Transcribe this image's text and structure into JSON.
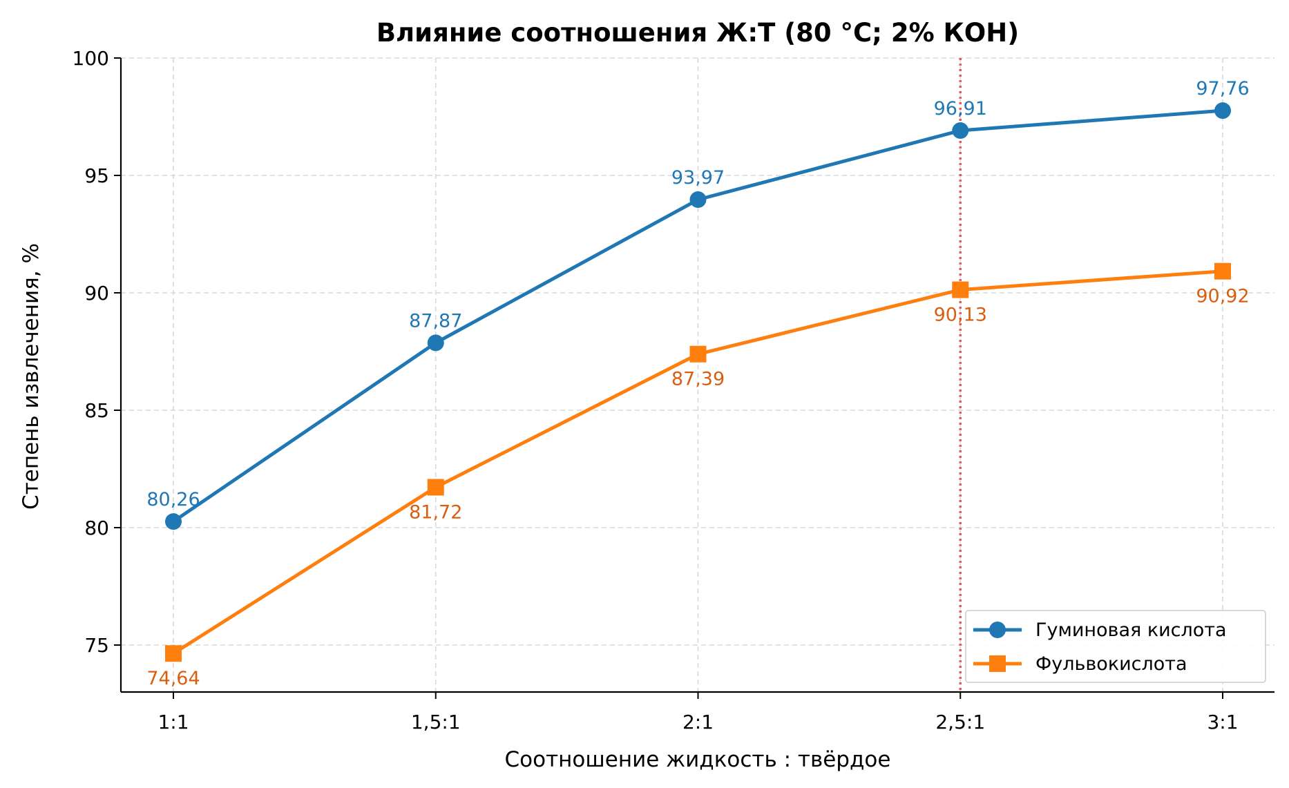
{
  "chart_data": {
    "type": "line",
    "title": "Влияние соотношения Ж:Т (80 °C; 2% КОН)",
    "xlabel": "Соотношение жидкость : твёрдое",
    "ylabel": "Степень извлечения, %",
    "categories": [
      "1:1",
      "1,5:1",
      "2:1",
      "2,5:1",
      "3:1"
    ],
    "ylim": [
      73,
      100
    ],
    "yticks": [
      75,
      80,
      85,
      90,
      95,
      100
    ],
    "grid": true,
    "legend_position": "bottom-right",
    "vline_category": "2,5:1",
    "vline_color": "#e8474b",
    "series": [
      {
        "name": "Гуминовая кислота",
        "values": [
          80.26,
          87.87,
          93.97,
          96.91,
          97.76
        ],
        "labels": [
          "80,26",
          "87,87",
          "93,97",
          "96,91",
          "97,76"
        ],
        "color": "#1f77b4",
        "label_color": "#1f77b4",
        "marker": "circle",
        "label_position": "above"
      },
      {
        "name": "Фульвокислота",
        "values": [
          74.64,
          81.72,
          87.39,
          90.13,
          90.92
        ],
        "labels": [
          "74,64",
          "81,72",
          "87,39",
          "90,13",
          "90,92"
        ],
        "color": "#ff7f0e",
        "label_color": "#d95f0e",
        "marker": "square",
        "label_position": "below"
      }
    ]
  }
}
